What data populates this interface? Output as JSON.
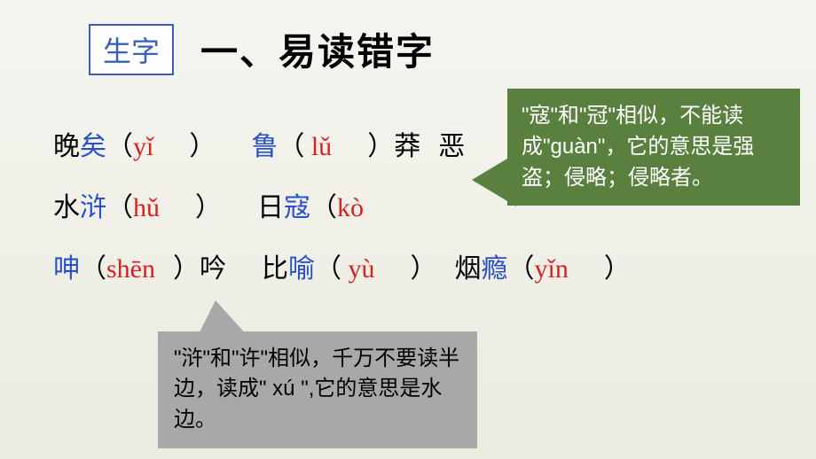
{
  "header": {
    "badge": "生字",
    "title": "一、易读错字"
  },
  "rows": {
    "r1": {
      "w1a": "晚",
      "w1b": "矣",
      "p1": "yǐ",
      "w2a": "鲁",
      "p2": "lǔ",
      "w2b": "莽",
      "w2c": "恶"
    },
    "r2": {
      "w1a": "水",
      "w1b": "浒",
      "p1": "hǔ",
      "w2a": "日",
      "w2b": "寇",
      "p2": "kò"
    },
    "r3": {
      "w1a": "呻",
      "p1": "shēn",
      "w1b": "吟",
      "w2a": "比",
      "w2b": "喻",
      "p2": "yù",
      "w3a": "烟",
      "w3b": "瘾",
      "p3": "yǐn"
    }
  },
  "bubbles": {
    "green": "\"寇\"和\"冠\"相似，不能读成\"guàn\"，它的意思是强盗；侵略；侵略者。",
    "gray": "\"浒\"和\"许\"相似，千万不要读半边，读成\" xú \",它的意思是水边。"
  },
  "colors": {
    "blue": "#2850c8",
    "red": "#d92020",
    "green_bg": "#5a8040",
    "gray_bg": "#a8a8a8",
    "badge_border": "#3a5fb8"
  },
  "typography": {
    "title_fontsize": 42,
    "content_fontsize": 30,
    "bubble_fontsize": 24,
    "badge_fontsize": 32
  }
}
